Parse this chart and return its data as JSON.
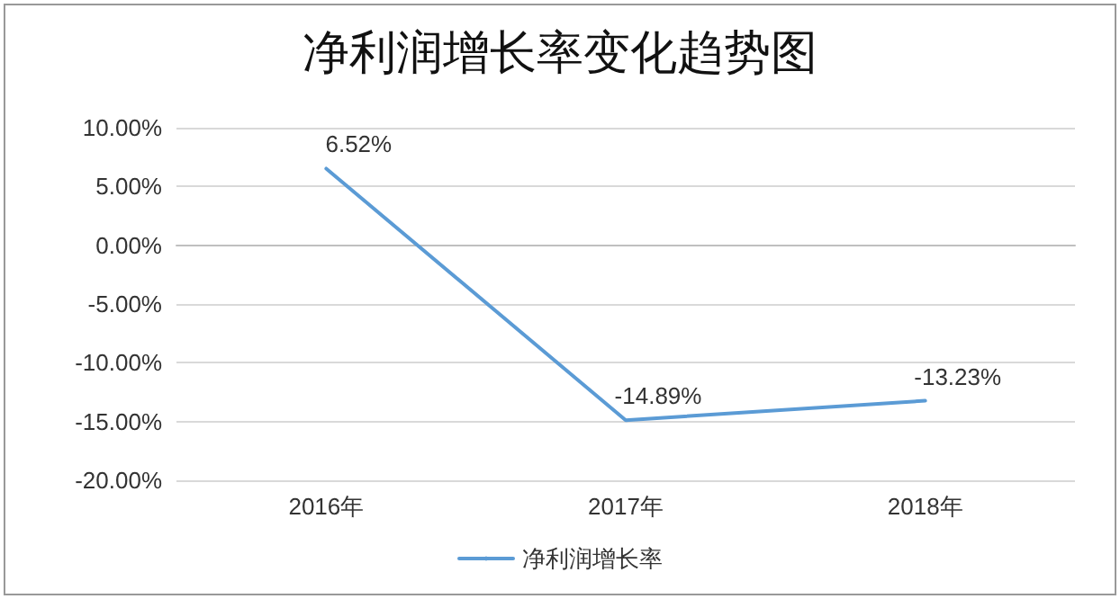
{
  "chart_data": {
    "type": "line",
    "title": "净利润增长率变化趋势图",
    "categories": [
      "2016年",
      "2017年",
      "2018年"
    ],
    "series": [
      {
        "name": "净利润增长率",
        "color": "#5b9bd5",
        "values": [
          6.52,
          -14.89,
          -13.23
        ],
        "value_labels": [
          "6.52%",
          "-14.89%",
          "-13.23%"
        ]
      }
    ],
    "ylim": [
      -20,
      10
    ],
    "yticks": [
      {
        "value": -20,
        "label": "-20.00%"
      },
      {
        "value": -15,
        "label": "-15.00%"
      },
      {
        "value": -10,
        "label": "-10.00%"
      },
      {
        "value": -5,
        "label": "-5.00%"
      },
      {
        "value": 0,
        "label": "0.00%"
      },
      {
        "value": 5,
        "label": "5.00%"
      },
      {
        "value": 10,
        "label": "10.00%"
      }
    ],
    "grid": "y",
    "legend": "bottom",
    "marker": "none",
    "line_style": "solid"
  }
}
